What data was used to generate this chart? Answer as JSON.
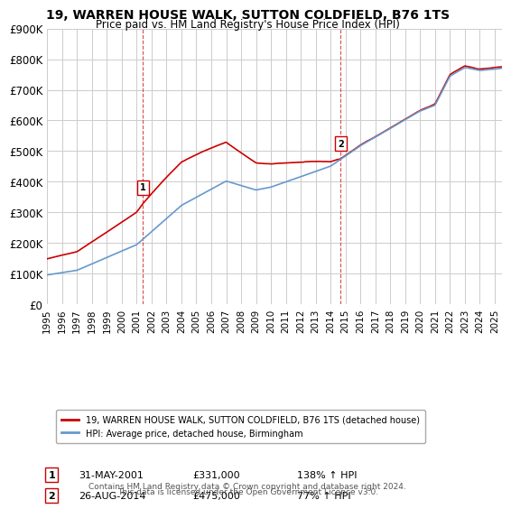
{
  "title_line1": "19, WARREN HOUSE WALK, SUTTON COLDFIELD, B76 1TS",
  "title_line2": "Price paid vs. HM Land Registry's House Price Index (HPI)",
  "ylabel": "",
  "background_color": "#ffffff",
  "grid_color": "#cccccc",
  "red_line_color": "#cc0000",
  "blue_line_color": "#6699cc",
  "sale1_year": 2001.42,
  "sale1_value": 331000,
  "sale1_label": "1",
  "sale1_date": "31-MAY-2001",
  "sale1_price": "£331,000",
  "sale1_hpi": "138% ↑ HPI",
  "sale2_year": 2014.67,
  "sale2_value": 475000,
  "sale2_label": "2",
  "sale2_date": "26-AUG-2014",
  "sale2_price": "£475,000",
  "sale2_hpi": "77% ↑ HPI",
  "ylim_min": 0,
  "ylim_max": 900000,
  "xlim_min": 1995,
  "xlim_max": 2025.5,
  "yticks": [
    0,
    100000,
    200000,
    300000,
    400000,
    500000,
    600000,
    700000,
    800000,
    900000
  ],
  "ytick_labels": [
    "£0",
    "£100K",
    "£200K",
    "£300K",
    "£400K",
    "£500K",
    "£600K",
    "£700K",
    "£800K",
    "£900K"
  ],
  "xticks": [
    1995,
    1996,
    1997,
    1998,
    1999,
    2000,
    2001,
    2002,
    2003,
    2004,
    2005,
    2006,
    2007,
    2008,
    2009,
    2010,
    2011,
    2012,
    2013,
    2014,
    2015,
    2016,
    2017,
    2018,
    2019,
    2020,
    2021,
    2022,
    2023,
    2024,
    2025
  ],
  "legend_red_label": "19, WARREN HOUSE WALK, SUTTON COLDFIELD, B76 1TS (detached house)",
  "legend_blue_label": "HPI: Average price, detached house, Birmingham",
  "footer1": "Contains HM Land Registry data © Crown copyright and database right 2024.",
  "footer2": "This data is licensed under the Open Government Licence v3.0."
}
